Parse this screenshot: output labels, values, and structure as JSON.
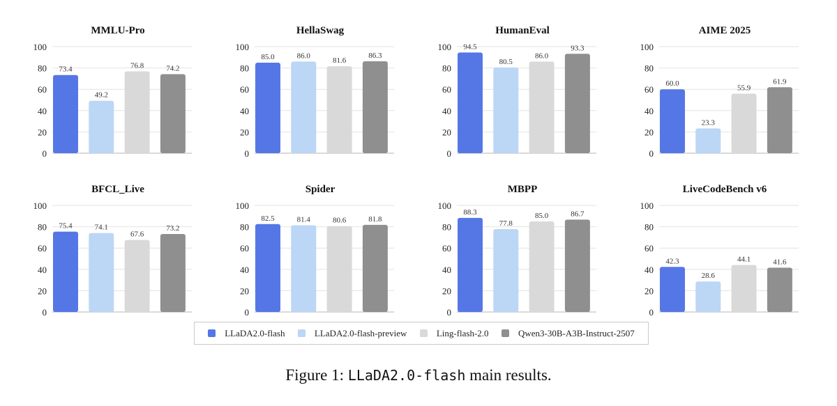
{
  "legend": {
    "items": [
      {
        "label": "LLaDA2.0-flash",
        "color": "#5577e6"
      },
      {
        "label": "LLaDA2.0-flash-preview",
        "color": "#bcd6f5"
      },
      {
        "label": "Ling-flash-2.0",
        "color": "#d9d9d9"
      },
      {
        "label": "Qwen3-30B-A3B-Instruct-2507",
        "color": "#8f8f8f"
      }
    ]
  },
  "caption": {
    "prefix": "Figure 1: ",
    "code": "LLaDA2.0-flash",
    "suffix": " main results."
  },
  "chart_data": [
    {
      "type": "bar",
      "title": "MMLU-Pro",
      "categories": [
        "LLaDA2.0-flash",
        "LLaDA2.0-flash-preview",
        "Ling-flash-2.0",
        "Qwen3-30B-A3B-Instruct-2507"
      ],
      "values": [
        73.4,
        49.2,
        76.8,
        74.2
      ],
      "labels": [
        "73.4",
        "49.2",
        "76.8",
        "74.2"
      ],
      "ylim": [
        0,
        100
      ],
      "yticks": [
        "0",
        "20",
        "40",
        "60",
        "80",
        "100"
      ]
    },
    {
      "type": "bar",
      "title": "HellaSwag",
      "categories": [
        "LLaDA2.0-flash",
        "LLaDA2.0-flash-preview",
        "Ling-flash-2.0",
        "Qwen3-30B-A3B-Instruct-2507"
      ],
      "values": [
        85.0,
        86.0,
        81.6,
        86.3
      ],
      "labels": [
        "85.0",
        "86.0",
        "81.6",
        "86.3"
      ],
      "ylim": [
        0,
        100
      ],
      "yticks": [
        "0",
        "20",
        "40",
        "60",
        "80",
        "100"
      ]
    },
    {
      "type": "bar",
      "title": "HumanEval",
      "categories": [
        "LLaDA2.0-flash",
        "LLaDA2.0-flash-preview",
        "Ling-flash-2.0",
        "Qwen3-30B-A3B-Instruct-2507"
      ],
      "values": [
        94.5,
        80.5,
        86.0,
        93.3
      ],
      "labels": [
        "94.5",
        "80.5",
        "86.0",
        "93.3"
      ],
      "ylim": [
        0,
        100
      ],
      "yticks": [
        "0",
        "20",
        "40",
        "60",
        "80",
        "100"
      ]
    },
    {
      "type": "bar",
      "title": "AIME 2025",
      "categories": [
        "LLaDA2.0-flash",
        "LLaDA2.0-flash-preview",
        "Ling-flash-2.0",
        "Qwen3-30B-A3B-Instruct-2507"
      ],
      "values": [
        60.0,
        23.3,
        55.9,
        61.9
      ],
      "labels": [
        "60.0",
        "23.3",
        "55.9",
        "61.9"
      ],
      "ylim": [
        0,
        100
      ],
      "yticks": [
        "0",
        "20",
        "40",
        "60",
        "80",
        "100"
      ]
    },
    {
      "type": "bar",
      "title": "BFCL_Live",
      "categories": [
        "LLaDA2.0-flash",
        "LLaDA2.0-flash-preview",
        "Ling-flash-2.0",
        "Qwen3-30B-A3B-Instruct-2507"
      ],
      "values": [
        75.4,
        74.1,
        67.6,
        73.2
      ],
      "labels": [
        "75.4",
        "74.1",
        "67.6",
        "73.2"
      ],
      "ylim": [
        0,
        100
      ],
      "yticks": [
        "0",
        "20",
        "40",
        "60",
        "80",
        "100"
      ]
    },
    {
      "type": "bar",
      "title": "Spider",
      "categories": [
        "LLaDA2.0-flash",
        "LLaDA2.0-flash-preview",
        "Ling-flash-2.0",
        "Qwen3-30B-A3B-Instruct-2507"
      ],
      "values": [
        82.5,
        81.4,
        80.6,
        81.8
      ],
      "labels": [
        "82.5",
        "81.4",
        "80.6",
        "81.8"
      ],
      "ylim": [
        0,
        100
      ],
      "yticks": [
        "0",
        "20",
        "40",
        "60",
        "80",
        "100"
      ]
    },
    {
      "type": "bar",
      "title": "MBPP",
      "categories": [
        "LLaDA2.0-flash",
        "LLaDA2.0-flash-preview",
        "Ling-flash-2.0",
        "Qwen3-30B-A3B-Instruct-2507"
      ],
      "values": [
        88.3,
        77.8,
        85.0,
        86.7
      ],
      "labels": [
        "88.3",
        "77.8",
        "85.0",
        "86.7"
      ],
      "ylim": [
        0,
        100
      ],
      "yticks": [
        "0",
        "20",
        "40",
        "60",
        "80",
        "100"
      ]
    },
    {
      "type": "bar",
      "title": "LiveCodeBench v6",
      "categories": [
        "LLaDA2.0-flash",
        "LLaDA2.0-flash-preview",
        "Ling-flash-2.0",
        "Qwen3-30B-A3B-Instruct-2507"
      ],
      "values": [
        42.3,
        28.6,
        44.1,
        41.6
      ],
      "labels": [
        "42.3",
        "28.6",
        "44.1",
        "41.6"
      ],
      "ylim": [
        0,
        100
      ],
      "yticks": [
        "0",
        "20",
        "40",
        "60",
        "80",
        "100"
      ]
    }
  ]
}
